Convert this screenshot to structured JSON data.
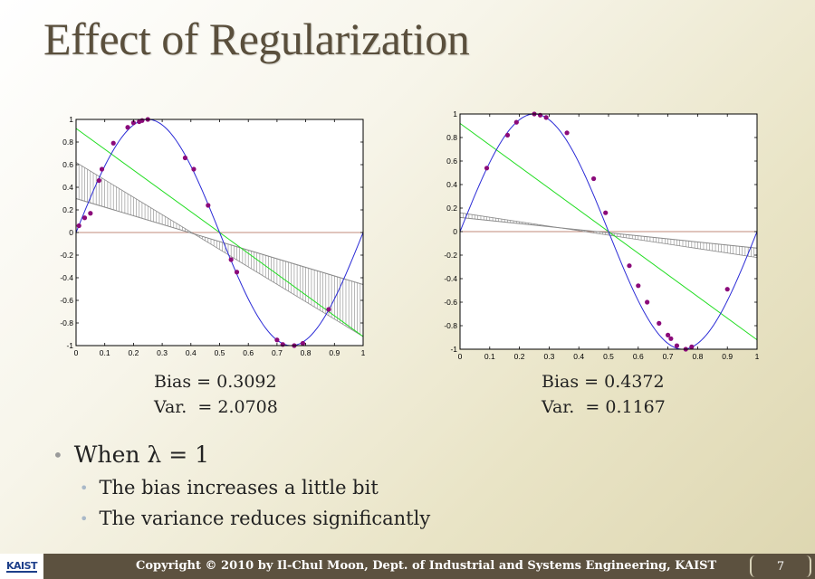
{
  "slide": {
    "title": "Effect of Regularization",
    "footer_text": "Copyright © 2010 by Il-Chul Moon, Dept. of Industrial and Systems Engineering, KAIST",
    "page_number": "7",
    "logo_text": "KAIST"
  },
  "left_stats": {
    "bias": "Bias = 0.3092",
    "var": "Var.  = 2.0708"
  },
  "right_stats": {
    "bias": "Bias = 0.4372",
    "var": "Var.  = 0.1167"
  },
  "bullets": {
    "main": "When λ = 1",
    "sub": [
      "The bias increases a little bit",
      "The variance reduces significantly"
    ]
  },
  "colors": {
    "sine": "#2b2bd6",
    "fit": "#22dd22",
    "mean_line": "#8a8a8a",
    "error_bars": "#8a8a8a",
    "zero_bars": "#c08a7a",
    "points": "#8b0a7a"
  },
  "chart_data": [
    {
      "type": "line",
      "xlim": [
        0,
        1
      ],
      "ylim": [
        -1,
        1
      ],
      "xticks": [
        "0",
        "0.1",
        "0.2",
        "0.3",
        "0.4",
        "0.5",
        "0.6",
        "0.7",
        "0.8",
        "0.9",
        "1"
      ],
      "yticks": [
        "1",
        "0.8",
        "0.6",
        "0.4",
        "0.2",
        "0",
        "-0.2",
        "-0.4",
        "-0.6",
        "-0.8",
        "-1"
      ],
      "series": [
        {
          "kind": "true-function",
          "x": [
            0,
            1
          ],
          "function": "sin(2*pi*x)"
        },
        {
          "kind": "fitted-line",
          "x": [
            0,
            1
          ],
          "y": [
            0.92,
            -0.92
          ]
        },
        {
          "kind": "mean-fit-line",
          "x": [
            0,
            1
          ],
          "y": [
            0.3,
            -0.46
          ]
        },
        {
          "kind": "variance-envelope",
          "x": [
            0,
            1
          ],
          "y": [
            0.62,
            -0.92
          ]
        },
        {
          "kind": "samples",
          "x": [
            0.01,
            0.03,
            0.05,
            0.08,
            0.09,
            0.13,
            0.18,
            0.2,
            0.22,
            0.23,
            0.25,
            0.38,
            0.41,
            0.46,
            0.54,
            0.56,
            0.7,
            0.72,
            0.76,
            0.79,
            0.88
          ],
          "y": [
            0.06,
            0.13,
            0.17,
            0.46,
            0.56,
            0.79,
            0.93,
            0.97,
            0.98,
            0.99,
            1.0,
            0.66,
            0.56,
            0.24,
            -0.24,
            -0.35,
            -0.95,
            -0.99,
            -1.0,
            -0.98,
            -0.68
          ]
        }
      ]
    },
    {
      "type": "line",
      "xlim": [
        0,
        1
      ],
      "ylim": [
        -1,
        1
      ],
      "xticks": [
        "0",
        "0.1",
        "0.2",
        "0.3",
        "0.4",
        "0.5",
        "0.6",
        "0.7",
        "0.8",
        "0.9",
        "1"
      ],
      "yticks": [
        "1",
        "0.8",
        "0.6",
        "0.4",
        "0.2",
        "0",
        "-0.2",
        "-0.4",
        "-0.6",
        "-0.8",
        "-1"
      ],
      "series": [
        {
          "kind": "true-function",
          "x": [
            0,
            1
          ],
          "function": "sin(2*pi*x)"
        },
        {
          "kind": "fitted-line",
          "x": [
            0,
            1
          ],
          "y": [
            0.92,
            -0.92
          ]
        },
        {
          "kind": "mean-fit-line",
          "x": [
            0,
            1
          ],
          "y": [
            0.12,
            -0.14
          ]
        },
        {
          "kind": "variance-envelope",
          "x": [
            0,
            1
          ],
          "y": [
            0.16,
            -0.22
          ]
        },
        {
          "kind": "samples",
          "x": [
            0.09,
            0.16,
            0.19,
            0.25,
            0.27,
            0.29,
            0.36,
            0.45,
            0.49,
            0.57,
            0.6,
            0.63,
            0.67,
            0.7,
            0.71,
            0.73,
            0.76,
            0.78,
            0.9
          ],
          "y": [
            0.54,
            0.82,
            0.93,
            1.0,
            0.99,
            0.97,
            0.84,
            0.45,
            0.16,
            -0.29,
            -0.46,
            -0.6,
            -0.78,
            -0.88,
            -0.91,
            -0.97,
            -1.0,
            -0.98,
            -0.49
          ]
        }
      ]
    }
  ]
}
